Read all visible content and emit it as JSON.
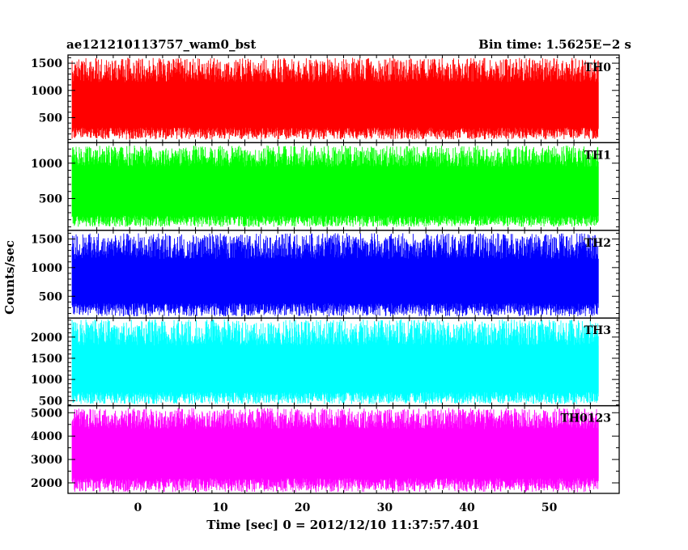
{
  "chart_data": {
    "type": "line",
    "title": "ae121210113757_wam0_bst",
    "subtitle": "Bin time: 1.5625E−2 s",
    "xlabel": "Time [sec] 0 = 2012/12/10 11:37:57.401",
    "ylabel": "Counts/sec",
    "xlim": [
      -8.5,
      58.5
    ],
    "data_x_range": [
      -8,
      56
    ],
    "x_ticks": [
      0,
      10,
      20,
      30,
      40,
      50
    ],
    "grid": false,
    "series": [
      {
        "name": "TH0",
        "color": "#ff0000",
        "ylim": [
          40,
          1650
        ],
        "y_ticks": [
          500,
          1000,
          1500
        ],
        "low_range": [
          100,
          320
        ],
        "high_range": [
          1150,
          1600
        ],
        "mean": 780
      },
      {
        "name": "TH1",
        "color": "#00ff00",
        "ylim": [
          50,
          1290
        ],
        "y_ticks": [
          500,
          1000
        ],
        "low_range": [
          100,
          260
        ],
        "high_range": [
          950,
          1250
        ],
        "mean": 640
      },
      {
        "name": "TH2",
        "color": "#0000ff",
        "ylim": [
          120,
          1650
        ],
        "y_ticks": [
          500,
          1000,
          1500
        ],
        "low_range": [
          150,
          380
        ],
        "high_range": [
          1150,
          1600
        ],
        "mean": 820
      },
      {
        "name": "TH3",
        "color": "#00ffff",
        "ylim": [
          380,
          2450
        ],
        "y_ticks": [
          500,
          1000,
          1500,
          2000
        ],
        "low_range": [
          420,
          700
        ],
        "high_range": [
          1800,
          2420
        ],
        "mean": 1350
      },
      {
        "name": "TH0123",
        "color": "#ff00ff",
        "ylim": [
          1550,
          5300
        ],
        "y_ticks": [
          2000,
          3000,
          4000,
          5000
        ],
        "low_range": [
          1600,
          2200
        ],
        "high_range": [
          4300,
          5200
        ],
        "mean": 3400
      }
    ]
  }
}
